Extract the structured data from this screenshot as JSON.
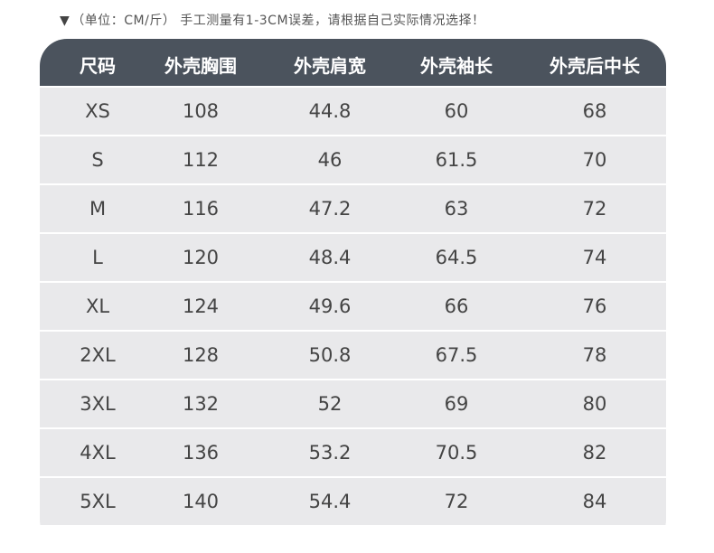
{
  "note": {
    "marker": "▼",
    "text": "（单位：CM/斤） 手工测量有1-3CM误差，请根据自己实际情况选择！"
  },
  "table": {
    "headers": [
      "尺码",
      "外壳胸围",
      "外壳肩宽",
      "外壳袖长",
      "外壳后中长"
    ],
    "rows": [
      [
        "XS",
        "108",
        "44.8",
        "60",
        "68"
      ],
      [
        "S",
        "112",
        "46",
        "61.5",
        "70"
      ],
      [
        "M",
        "116",
        "47.2",
        "63",
        "72"
      ],
      [
        "L",
        "120",
        "48.4",
        "64.5",
        "74"
      ],
      [
        "XL",
        "124",
        "49.6",
        "66",
        "76"
      ],
      [
        "2XL",
        "128",
        "50.8",
        "67.5",
        "78"
      ],
      [
        "3XL",
        "132",
        "52",
        "69",
        "80"
      ],
      [
        "4XL",
        "136",
        "53.2",
        "70.5",
        "82"
      ],
      [
        "5XL",
        "140",
        "54.4",
        "72",
        "84"
      ]
    ]
  },
  "colors": {
    "header_bg": "#4b535d",
    "row_bg": "#e9e9eb",
    "text": "#444444"
  }
}
